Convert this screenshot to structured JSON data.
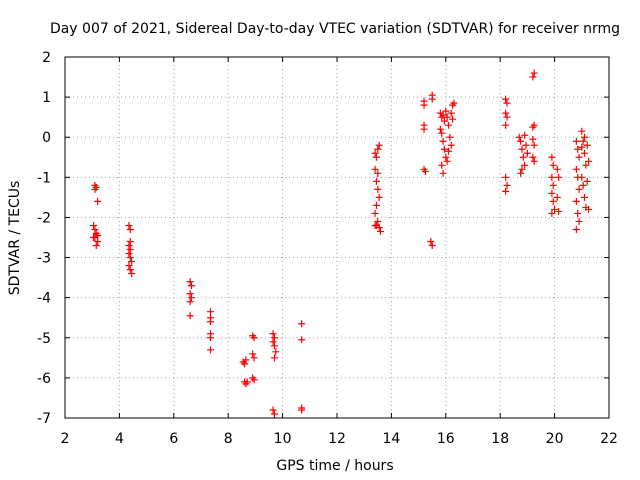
{
  "chart_data": {
    "type": "scatter",
    "title": "Day 007 of 2021, Sidereal Day-to-day VTEC variation (SDTVAR) for receiver nrmg",
    "xlabel": "GPS time / hours",
    "ylabel": "SDTVAR / TECUs",
    "xlim": [
      2,
      22
    ],
    "ylim": [
      -7,
      2
    ],
    "xticks": [
      2,
      4,
      6,
      8,
      10,
      12,
      14,
      16,
      18,
      20,
      22
    ],
    "yticks": [
      2,
      1,
      0,
      -1,
      -2,
      -3,
      -4,
      -5,
      -6,
      -7
    ],
    "grid": true,
    "marker": "+",
    "marker_color": "#ff0000",
    "series": [
      {
        "name": "SDTVAR",
        "points": [
          [
            3.1,
            -1.2
          ],
          [
            3.1,
            -1.3
          ],
          [
            3.15,
            -1.25
          ],
          [
            3.2,
            -1.6
          ],
          [
            3.05,
            -2.2
          ],
          [
            3.1,
            -2.3
          ],
          [
            3.15,
            -2.4
          ],
          [
            3.1,
            -2.5
          ],
          [
            3.2,
            -2.6
          ],
          [
            3.15,
            -2.7
          ],
          [
            3.05,
            -2.5
          ],
          [
            3.2,
            -2.45
          ],
          [
            4.35,
            -2.2
          ],
          [
            4.4,
            -2.3
          ],
          [
            4.35,
            -2.7
          ],
          [
            4.4,
            -2.8
          ],
          [
            4.35,
            -2.9
          ],
          [
            4.4,
            -3.0
          ],
          [
            4.45,
            -3.1
          ],
          [
            4.35,
            -3.2
          ],
          [
            4.4,
            -3.3
          ],
          [
            4.45,
            -3.4
          ],
          [
            4.4,
            -2.6
          ],
          [
            6.6,
            -3.6
          ],
          [
            6.65,
            -3.7
          ],
          [
            6.6,
            -3.9
          ],
          [
            6.65,
            -4.0
          ],
          [
            6.6,
            -4.1
          ],
          [
            6.6,
            -4.45
          ],
          [
            7.35,
            -4.35
          ],
          [
            7.35,
            -4.5
          ],
          [
            7.35,
            -4.6
          ],
          [
            7.35,
            -4.9
          ],
          [
            7.35,
            -5.0
          ],
          [
            7.35,
            -5.3
          ],
          [
            8.55,
            -5.6
          ],
          [
            8.6,
            -5.65
          ],
          [
            8.65,
            -5.55
          ],
          [
            8.6,
            -6.1
          ],
          [
            8.65,
            -6.15
          ],
          [
            8.7,
            -6.1
          ],
          [
            8.9,
            -4.95
          ],
          [
            8.95,
            -5.0
          ],
          [
            8.9,
            -5.4
          ],
          [
            8.95,
            -5.5
          ],
          [
            8.9,
            -6.0
          ],
          [
            8.95,
            -6.05
          ],
          [
            9.65,
            -4.9
          ],
          [
            9.7,
            -5.0
          ],
          [
            9.65,
            -5.1
          ],
          [
            9.7,
            -5.2
          ],
          [
            9.75,
            -5.35
          ],
          [
            9.7,
            -5.5
          ],
          [
            9.65,
            -6.8
          ],
          [
            9.7,
            -6.9
          ],
          [
            10.7,
            -4.65
          ],
          [
            10.7,
            -5.05
          ],
          [
            10.7,
            -6.75
          ],
          [
            10.7,
            -6.8
          ],
          [
            13.4,
            -0.4
          ],
          [
            13.45,
            -0.5
          ],
          [
            13.5,
            -0.3
          ],
          [
            13.55,
            -0.2
          ],
          [
            13.4,
            -0.8
          ],
          [
            13.5,
            -0.9
          ],
          [
            13.45,
            -1.1
          ],
          [
            13.5,
            -1.3
          ],
          [
            13.55,
            -1.5
          ],
          [
            13.45,
            -1.7
          ],
          [
            13.4,
            -1.9
          ],
          [
            13.5,
            -2.1
          ],
          [
            13.4,
            -2.2
          ],
          [
            13.55,
            -2.25
          ],
          [
            13.6,
            -2.35
          ],
          [
            13.45,
            -2.2
          ],
          [
            15.2,
            0.8
          ],
          [
            15.2,
            0.9
          ],
          [
            15.2,
            0.3
          ],
          [
            15.2,
            0.2
          ],
          [
            15.2,
            -0.8
          ],
          [
            15.25,
            -0.85
          ],
          [
            15.5,
            1.05
          ],
          [
            15.5,
            0.95
          ],
          [
            15.45,
            -2.6
          ],
          [
            15.5,
            -2.7
          ],
          [
            15.8,
            0.6
          ],
          [
            15.85,
            0.5
          ],
          [
            15.9,
            0.55
          ],
          [
            15.95,
            0.4
          ],
          [
            15.8,
            0.2
          ],
          [
            15.85,
            0.1
          ],
          [
            15.9,
            -0.1
          ],
          [
            15.95,
            -0.3
          ],
          [
            16.0,
            -0.5
          ],
          [
            15.85,
            -0.7
          ],
          [
            15.9,
            -0.9
          ],
          [
            16.0,
            0.65
          ],
          [
            16.05,
            0.5
          ],
          [
            16.1,
            0.3
          ],
          [
            16.15,
            0.0
          ],
          [
            16.2,
            -0.2
          ],
          [
            16.25,
            0.8
          ],
          [
            16.3,
            0.85
          ],
          [
            16.1,
            -0.35
          ],
          [
            16.2,
            0.6
          ],
          [
            16.05,
            -0.6
          ],
          [
            16.25,
            0.45
          ],
          [
            18.2,
            0.95
          ],
          [
            18.25,
            0.85
          ],
          [
            18.2,
            0.6
          ],
          [
            18.25,
            0.5
          ],
          [
            18.2,
            0.3
          ],
          [
            18.2,
            -1.0
          ],
          [
            18.25,
            -1.2
          ],
          [
            18.2,
            -1.35
          ],
          [
            18.7,
            0.0
          ],
          [
            18.75,
            -0.1
          ],
          [
            18.8,
            -0.3
          ],
          [
            18.85,
            -0.5
          ],
          [
            18.9,
            -0.7
          ],
          [
            18.75,
            -0.9
          ],
          [
            18.95,
            -0.2
          ],
          [
            19.0,
            -0.4
          ],
          [
            18.8,
            -0.8
          ],
          [
            18.9,
            0.05
          ],
          [
            19.2,
            1.5
          ],
          [
            19.25,
            1.6
          ],
          [
            19.2,
            0.25
          ],
          [
            19.25,
            0.3
          ],
          [
            19.2,
            -0.05
          ],
          [
            19.25,
            -0.2
          ],
          [
            19.2,
            -0.5
          ],
          [
            19.25,
            -0.6
          ],
          [
            19.9,
            -0.5
          ],
          [
            19.95,
            -0.7
          ],
          [
            19.9,
            -1.0
          ],
          [
            19.95,
            -1.2
          ],
          [
            19.9,
            -1.4
          ],
          [
            19.95,
            -1.6
          ],
          [
            19.9,
            -1.9
          ],
          [
            20.0,
            -1.8
          ],
          [
            20.1,
            -0.8
          ],
          [
            20.15,
            -1.0
          ],
          [
            20.1,
            -1.5
          ],
          [
            20.15,
            -1.85
          ],
          [
            20.8,
            -0.1
          ],
          [
            20.85,
            -0.3
          ],
          [
            20.9,
            -0.5
          ],
          [
            20.8,
            -0.8
          ],
          [
            20.85,
            -1.0
          ],
          [
            20.9,
            -1.3
          ],
          [
            20.8,
            -1.6
          ],
          [
            20.85,
            -1.9
          ],
          [
            20.9,
            -2.1
          ],
          [
            20.8,
            -2.3
          ],
          [
            21.0,
            0.15
          ],
          [
            21.05,
            -0.1
          ],
          [
            21.1,
            -0.4
          ],
          [
            21.15,
            -0.7
          ],
          [
            21.0,
            -1.0
          ],
          [
            21.05,
            -1.2
          ],
          [
            21.1,
            -1.5
          ],
          [
            21.15,
            -1.75
          ],
          [
            21.2,
            -0.2
          ],
          [
            21.25,
            -0.6
          ],
          [
            21.2,
            -1.1
          ],
          [
            21.25,
            -1.8
          ],
          [
            21.0,
            -0.25
          ],
          [
            21.1,
            0.0
          ]
        ]
      }
    ]
  }
}
